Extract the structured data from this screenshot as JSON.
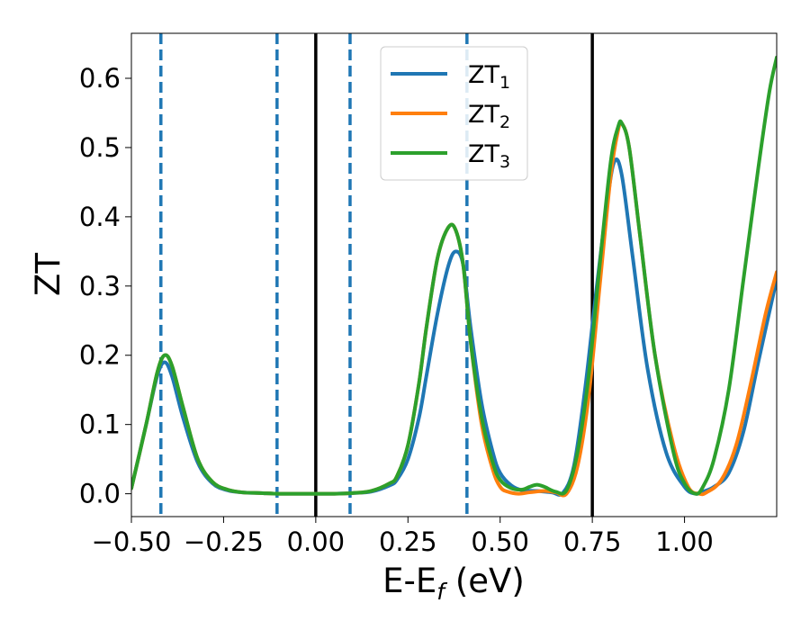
{
  "chart_data": {
    "type": "line",
    "xlabel_main": "E-E",
    "xlabel_sub": "f",
    "xlabel_unit": " (eV)",
    "ylabel": "ZT",
    "xlim": [
      -0.5,
      1.25
    ],
    "ylim": [
      -0.033,
      0.665
    ],
    "x_ticks": [
      -0.5,
      -0.25,
      0.0,
      0.25,
      0.5,
      0.75,
      1.0
    ],
    "x_tick_labels": [
      "−0.50",
      "−0.25",
      "0.00",
      "0.25",
      "0.50",
      "0.75",
      "1.00"
    ],
    "y_ticks": [
      0.0,
      0.1,
      0.2,
      0.3,
      0.4,
      0.5,
      0.6
    ],
    "y_tick_labels": [
      "0.0",
      "0.1",
      "0.2",
      "0.3",
      "0.4",
      "0.5",
      "0.6"
    ],
    "grid": false,
    "legend_position": "top-center",
    "vlines_dashed": {
      "color": "#1f77b4",
      "x": [
        -0.42,
        -0.105,
        0.093,
        0.41
      ]
    },
    "vlines_solid": {
      "color": "#000000",
      "x": [
        0.0,
        0.75
      ]
    },
    "series": [
      {
        "name": "ZT",
        "subscript": "1",
        "color": "#1f77b4",
        "x": [
          -0.5,
          -0.46,
          -0.43,
          -0.41,
          -0.39,
          -0.36,
          -0.32,
          -0.28,
          -0.24,
          -0.2,
          -0.15,
          -0.1,
          -0.05,
          0.0,
          0.05,
          0.1,
          0.15,
          0.2,
          0.22,
          0.25,
          0.28,
          0.3,
          0.33,
          0.36,
          0.38,
          0.4,
          0.42,
          0.45,
          0.48,
          0.5,
          0.53,
          0.56,
          0.6,
          0.64,
          0.67,
          0.7,
          0.73,
          0.76,
          0.79,
          0.81,
          0.83,
          0.86,
          0.9,
          0.95,
          1.0,
          1.03,
          1.05,
          1.08,
          1.12,
          1.16,
          1.2,
          1.25
        ],
        "y": [
          0.008,
          0.1,
          0.17,
          0.19,
          0.17,
          0.11,
          0.045,
          0.015,
          0.005,
          0.002,
          0.001,
          0.0,
          0.0,
          0.0,
          0.0,
          0.001,
          0.003,
          0.012,
          0.02,
          0.05,
          0.11,
          0.17,
          0.26,
          0.33,
          0.35,
          0.33,
          0.24,
          0.13,
          0.06,
          0.03,
          0.012,
          0.005,
          0.004,
          0.002,
          0.001,
          0.04,
          0.15,
          0.29,
          0.42,
          0.48,
          0.46,
          0.34,
          0.18,
          0.06,
          0.01,
          0.0,
          0.003,
          0.01,
          0.03,
          0.09,
          0.19,
          0.31
        ]
      },
      {
        "name": "ZT",
        "subscript": "2",
        "color": "#ff7f0e",
        "x": [
          -0.5,
          -0.46,
          -0.43,
          -0.41,
          -0.39,
          -0.36,
          -0.32,
          -0.28,
          -0.24,
          -0.2,
          -0.15,
          -0.1,
          -0.05,
          0.0,
          0.05,
          0.1,
          0.15,
          0.2,
          0.22,
          0.25,
          0.28,
          0.3,
          0.33,
          0.36,
          0.38,
          0.4,
          0.42,
          0.45,
          0.48,
          0.5,
          0.52,
          0.55,
          0.58,
          0.62,
          0.65,
          0.68,
          0.71,
          0.74,
          0.77,
          0.8,
          0.82,
          0.83,
          0.85,
          0.88,
          0.92,
          0.97,
          1.01,
          1.04,
          1.06,
          1.1,
          1.14,
          1.18,
          1.22,
          1.25
        ],
        "y": [
          0.008,
          0.1,
          0.175,
          0.2,
          0.185,
          0.125,
          0.05,
          0.017,
          0.006,
          0.002,
          0.001,
          0.0,
          0.0,
          0.0,
          0.0,
          0.001,
          0.004,
          0.015,
          0.025,
          0.07,
          0.16,
          0.24,
          0.34,
          0.385,
          0.38,
          0.33,
          0.22,
          0.1,
          0.035,
          0.01,
          0.003,
          0.0,
          0.002,
          0.004,
          0.002,
          0.0,
          0.04,
          0.14,
          0.3,
          0.46,
          0.525,
          0.535,
          0.5,
          0.37,
          0.2,
          0.07,
          0.01,
          0.0,
          0.002,
          0.02,
          0.07,
          0.16,
          0.26,
          0.32
        ]
      },
      {
        "name": "ZT",
        "subscript": "3",
        "color": "#2ca02c",
        "x": [
          -0.5,
          -0.46,
          -0.43,
          -0.41,
          -0.39,
          -0.36,
          -0.32,
          -0.28,
          -0.24,
          -0.2,
          -0.15,
          -0.1,
          -0.05,
          0.0,
          0.05,
          0.1,
          0.15,
          0.2,
          0.22,
          0.25,
          0.28,
          0.3,
          0.33,
          0.36,
          0.38,
          0.4,
          0.42,
          0.45,
          0.48,
          0.5,
          0.53,
          0.56,
          0.58,
          0.6,
          0.62,
          0.65,
          0.68,
          0.71,
          0.74,
          0.77,
          0.8,
          0.82,
          0.83,
          0.85,
          0.88,
          0.92,
          0.97,
          1.0,
          1.03,
          1.05,
          1.08,
          1.12,
          1.16,
          1.2,
          1.23,
          1.25
        ],
        "y": [
          0.008,
          0.1,
          0.175,
          0.2,
          0.185,
          0.125,
          0.05,
          0.017,
          0.006,
          0.002,
          0.001,
          0.0,
          0.0,
          0.0,
          0.0,
          0.001,
          0.004,
          0.015,
          0.025,
          0.07,
          0.16,
          0.24,
          0.34,
          0.385,
          0.38,
          0.33,
          0.22,
          0.11,
          0.045,
          0.02,
          0.008,
          0.006,
          0.01,
          0.013,
          0.01,
          0.003,
          0.005,
          0.06,
          0.17,
          0.33,
          0.48,
          0.53,
          0.535,
          0.5,
          0.37,
          0.2,
          0.06,
          0.015,
          0.0,
          0.01,
          0.05,
          0.15,
          0.31,
          0.47,
          0.58,
          0.63
        ]
      }
    ]
  }
}
